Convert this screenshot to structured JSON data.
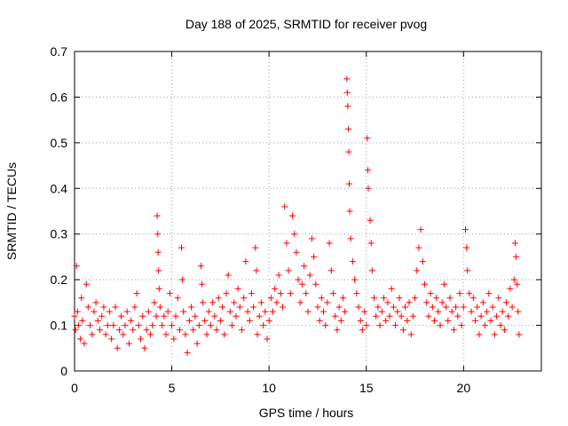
{
  "chart_data": {
    "type": "scatter",
    "title": "Day 188 of 2025, SRMTID for receiver pvog",
    "xlabel": "GPS time / hours",
    "ylabel": "SRMTID / TECUs",
    "xlim": [
      0,
      24
    ],
    "ylim": [
      0,
      0.7
    ],
    "xticks": [
      0,
      5,
      10,
      15,
      20
    ],
    "xtick_labels": [
      "0",
      "5",
      "10",
      "15",
      "20"
    ],
    "yticks": [
      0,
      0.1,
      0.2,
      0.3,
      0.4,
      0.5,
      0.6,
      0.7
    ],
    "ytick_labels": [
      "0",
      "0.1",
      "0.2",
      "0.3",
      "0.4",
      "0.5",
      "0.6",
      "0.7"
    ],
    "grid": true,
    "marker": "+",
    "color": "#ff0000",
    "series": [
      {
        "name": "SRMTID",
        "points": [
          [
            0.0,
            0.12
          ],
          [
            0.05,
            0.09
          ],
          [
            0.1,
            0.23
          ],
          [
            0.15,
            0.13
          ],
          [
            0.2,
            0.1
          ],
          [
            0.3,
            0.07
          ],
          [
            0.35,
            0.16
          ],
          [
            0.4,
            0.11
          ],
          [
            0.5,
            0.06
          ],
          [
            0.6,
            0.19
          ],
          [
            0.7,
            0.14
          ],
          [
            0.8,
            0.1
          ],
          [
            0.9,
            0.08
          ],
          [
            1.0,
            0.13
          ],
          [
            1.1,
            0.15
          ],
          [
            1.2,
            0.11
          ],
          [
            1.3,
            0.09
          ],
          [
            1.4,
            0.12
          ],
          [
            1.5,
            0.14
          ],
          [
            1.6,
            0.08
          ],
          [
            1.7,
            0.1
          ],
          [
            1.8,
            0.13
          ],
          [
            1.9,
            0.07
          ],
          [
            2.0,
            0.1
          ],
          [
            2.1,
            0.14
          ],
          [
            2.2,
            0.05
          ],
          [
            2.3,
            0.09
          ],
          [
            2.4,
            0.12
          ],
          [
            2.5,
            0.08
          ],
          [
            2.6,
            0.1
          ],
          [
            2.7,
            0.13
          ],
          [
            2.8,
            0.06
          ],
          [
            2.9,
            0.11
          ],
          [
            3.0,
            0.09
          ],
          [
            3.1,
            0.14
          ],
          [
            3.2,
            0.17
          ],
          [
            3.3,
            0.1
          ],
          [
            3.4,
            0.07
          ],
          [
            3.5,
            0.12
          ],
          [
            3.6,
            0.05
          ],
          [
            3.7,
            0.09
          ],
          [
            3.8,
            0.13
          ],
          [
            3.9,
            0.08
          ],
          [
            4.0,
            0.1
          ],
          [
            4.1,
            0.15
          ],
          [
            4.2,
            0.12
          ],
          [
            4.25,
            0.34
          ],
          [
            4.28,
            0.3
          ],
          [
            4.3,
            0.26
          ],
          [
            4.32,
            0.22
          ],
          [
            4.35,
            0.18
          ],
          [
            4.4,
            0.14
          ],
          [
            4.5,
            0.1
          ],
          [
            4.6,
            0.12
          ],
          [
            4.7,
            0.08
          ],
          [
            4.8,
            0.13
          ],
          [
            4.9,
            0.17
          ],
          [
            5.0,
            0.1
          ],
          [
            5.1,
            0.07
          ],
          [
            5.2,
            0.12
          ],
          [
            5.3,
            0.16
          ],
          [
            5.4,
            0.09
          ],
          [
            5.5,
            0.27
          ],
          [
            5.55,
            0.2
          ],
          [
            5.6,
            0.13
          ],
          [
            5.7,
            0.08
          ],
          [
            5.8,
            0.04
          ],
          [
            5.9,
            0.11
          ],
          [
            6.0,
            0.14
          ],
          [
            6.1,
            0.09
          ],
          [
            6.2,
            0.12
          ],
          [
            6.3,
            0.06
          ],
          [
            6.4,
            0.1
          ],
          [
            6.5,
            0.23
          ],
          [
            6.55,
            0.19
          ],
          [
            6.6,
            0.15
          ],
          [
            6.7,
            0.11
          ],
          [
            6.8,
            0.08
          ],
          [
            6.9,
            0.13
          ],
          [
            7.0,
            0.1
          ],
          [
            7.1,
            0.15
          ],
          [
            7.2,
            0.12
          ],
          [
            7.3,
            0.09
          ],
          [
            7.4,
            0.16
          ],
          [
            7.5,
            0.11
          ],
          [
            7.6,
            0.14
          ],
          [
            7.7,
            0.08
          ],
          [
            7.8,
            0.17
          ],
          [
            7.9,
            0.21
          ],
          [
            8.0,
            0.13
          ],
          [
            8.1,
            0.1
          ],
          [
            8.2,
            0.15
          ],
          [
            8.3,
            0.12
          ],
          [
            8.4,
            0.18
          ],
          [
            8.5,
            0.14
          ],
          [
            8.6,
            0.09
          ],
          [
            8.7,
            0.16
          ],
          [
            8.8,
            0.24
          ],
          [
            8.9,
            0.13
          ],
          [
            9.0,
            0.11
          ],
          [
            9.1,
            0.17
          ],
          [
            9.2,
            0.14
          ],
          [
            9.3,
            0.27
          ],
          [
            9.35,
            0.22
          ],
          [
            9.4,
            0.08
          ],
          [
            9.5,
            0.12
          ],
          [
            9.6,
            0.15
          ],
          [
            9.7,
            0.1
          ],
          [
            9.8,
            0.13
          ],
          [
            9.9,
            0.07
          ],
          [
            10.0,
            0.11
          ],
          [
            10.1,
            0.16
          ],
          [
            10.2,
            0.13
          ],
          [
            10.3,
            0.18
          ],
          [
            10.4,
            0.15
          ],
          [
            10.5,
            0.21
          ],
          [
            10.6,
            0.17
          ],
          [
            10.7,
            0.14
          ],
          [
            10.8,
            0.36
          ],
          [
            10.9,
            0.28
          ],
          [
            11.0,
            0.22
          ],
          [
            11.1,
            0.17
          ],
          [
            11.2,
            0.34
          ],
          [
            11.3,
            0.3
          ],
          [
            11.4,
            0.26
          ],
          [
            11.5,
            0.2
          ],
          [
            11.6,
            0.15
          ],
          [
            11.7,
            0.19
          ],
          [
            11.8,
            0.23
          ],
          [
            11.9,
            0.17
          ],
          [
            12.0,
            0.13
          ],
          [
            12.1,
            0.21
          ],
          [
            12.2,
            0.29
          ],
          [
            12.3,
            0.25
          ],
          [
            12.4,
            0.19
          ],
          [
            12.5,
            0.14
          ],
          [
            12.6,
            0.11
          ],
          [
            12.7,
            0.16
          ],
          [
            12.8,
            0.13
          ],
          [
            12.9,
            0.1
          ],
          [
            13.0,
            0.15
          ],
          [
            13.1,
            0.28
          ],
          [
            13.2,
            0.22
          ],
          [
            13.3,
            0.17
          ],
          [
            13.4,
            0.12
          ],
          [
            13.5,
            0.09
          ],
          [
            13.6,
            0.14
          ],
          [
            13.7,
            0.11
          ],
          [
            13.8,
            0.16
          ],
          [
            13.9,
            0.13
          ],
          [
            14.0,
            0.64
          ],
          [
            14.02,
            0.61
          ],
          [
            14.05,
            0.58
          ],
          [
            14.08,
            0.53
          ],
          [
            14.1,
            0.48
          ],
          [
            14.12,
            0.41
          ],
          [
            14.15,
            0.35
          ],
          [
            14.2,
            0.29
          ],
          [
            14.3,
            0.24
          ],
          [
            14.4,
            0.2
          ],
          [
            14.5,
            0.17
          ],
          [
            14.6,
            0.14
          ],
          [
            14.7,
            0.11
          ],
          [
            14.8,
            0.09
          ],
          [
            14.9,
            0.13
          ],
          [
            15.0,
            0.1
          ],
          [
            15.05,
            0.51
          ],
          [
            15.08,
            0.44
          ],
          [
            15.1,
            0.4
          ],
          [
            15.2,
            0.33
          ],
          [
            15.25,
            0.28
          ],
          [
            15.3,
            0.22
          ],
          [
            15.4,
            0.16
          ],
          [
            15.5,
            0.12
          ],
          [
            15.6,
            0.14
          ],
          [
            15.7,
            0.1
          ],
          [
            15.8,
            0.13
          ],
          [
            15.9,
            0.16
          ],
          [
            16.0,
            0.11
          ],
          [
            16.1,
            0.15
          ],
          [
            16.2,
            0.12
          ],
          [
            16.3,
            0.18
          ],
          [
            16.4,
            0.14
          ],
          [
            16.5,
            0.1
          ],
          [
            16.6,
            0.13
          ],
          [
            16.7,
            0.16
          ],
          [
            16.8,
            0.12
          ],
          [
            16.9,
            0.09
          ],
          [
            17.0,
            0.14
          ],
          [
            17.1,
            0.11
          ],
          [
            17.2,
            0.15
          ],
          [
            17.3,
            0.08
          ],
          [
            17.4,
            0.12
          ],
          [
            17.5,
            0.16
          ],
          [
            17.6,
            0.22
          ],
          [
            17.7,
            0.27
          ],
          [
            17.8,
            0.31
          ],
          [
            17.9,
            0.24
          ],
          [
            18.0,
            0.19
          ],
          [
            18.1,
            0.15
          ],
          [
            18.2,
            0.12
          ],
          [
            18.3,
            0.17
          ],
          [
            18.4,
            0.14
          ],
          [
            18.5,
            0.11
          ],
          [
            18.6,
            0.16
          ],
          [
            18.7,
            0.13
          ],
          [
            18.8,
            0.1
          ],
          [
            18.9,
            0.15
          ],
          [
            19.0,
            0.19
          ],
          [
            19.1,
            0.14
          ],
          [
            19.2,
            0.11
          ],
          [
            19.3,
            0.16
          ],
          [
            19.4,
            0.13
          ],
          [
            19.5,
            0.09
          ],
          [
            19.6,
            0.14
          ],
          [
            19.7,
            0.12
          ],
          [
            19.8,
            0.17
          ],
          [
            19.9,
            0.1
          ],
          [
            20.0,
            0.14
          ],
          [
            20.1,
            0.31
          ],
          [
            20.15,
            0.27
          ],
          [
            20.2,
            0.22
          ],
          [
            20.3,
            0.17
          ],
          [
            20.4,
            0.13
          ],
          [
            20.5,
            0.16
          ],
          [
            20.6,
            0.11
          ],
          [
            20.7,
            0.14
          ],
          [
            20.8,
            0.08
          ],
          [
            20.9,
            0.12
          ],
          [
            21.0,
            0.15
          ],
          [
            21.1,
            0.1
          ],
          [
            21.2,
            0.13
          ],
          [
            21.3,
            0.17
          ],
          [
            21.4,
            0.11
          ],
          [
            21.5,
            0.14
          ],
          [
            21.6,
            0.08
          ],
          [
            21.7,
            0.12
          ],
          [
            21.8,
            0.16
          ],
          [
            21.9,
            0.1
          ],
          [
            22.0,
            0.13
          ],
          [
            22.1,
            0.09
          ],
          [
            22.2,
            0.15
          ],
          [
            22.3,
            0.12
          ],
          [
            22.4,
            0.18
          ],
          [
            22.5,
            0.14
          ],
          [
            22.6,
            0.2
          ],
          [
            22.65,
            0.28
          ],
          [
            22.7,
            0.25
          ],
          [
            22.75,
            0.19
          ],
          [
            22.8,
            0.13
          ],
          [
            22.85,
            0.08
          ]
        ]
      }
    ]
  }
}
